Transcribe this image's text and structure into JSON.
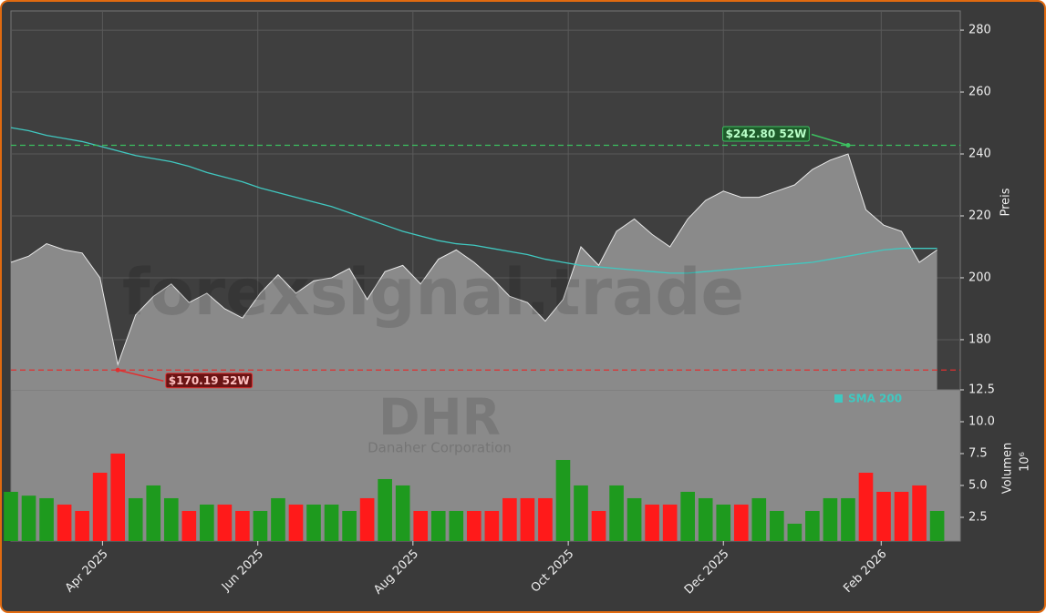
{
  "chart_data": [
    {
      "type": "area",
      "watermark": "forexsignal.trade",
      "ylabel": "Preis",
      "x": [
        0,
        1,
        2,
        3,
        4,
        5,
        6,
        7,
        8,
        9,
        10,
        11,
        12,
        13,
        14,
        15,
        16,
        17,
        18,
        19,
        20,
        21,
        22,
        23,
        24,
        25,
        26,
        27,
        28,
        29,
        30,
        31,
        32,
        33,
        34,
        35,
        36,
        37,
        38,
        39,
        40,
        41,
        42,
        43,
        44,
        45,
        46,
        47,
        48,
        49,
        50,
        51,
        52
      ],
      "xlim": [
        0,
        53.3
      ],
      "ylim": [
        163.8,
        286.2
      ],
      "yticks": [
        180,
        200,
        220,
        240,
        260,
        280
      ],
      "grid": true,
      "legend": "lower right",
      "series": [
        {
          "name": "DHR",
          "color": "#e8e8e8",
          "fill": "#8a8a8a",
          "values": [
            205,
            207,
            211,
            209,
            208,
            200,
            172,
            188,
            194,
            198,
            192,
            195,
            190,
            187,
            195,
            201,
            195,
            199,
            200,
            203,
            193,
            202,
            204,
            198,
            206,
            209,
            205,
            200,
            194,
            192,
            186,
            193,
            210,
            204,
            215,
            219,
            214,
            210,
            219,
            225,
            228,
            226,
            226,
            228,
            230,
            235,
            238,
            240,
            222,
            217,
            215,
            205,
            209
          ]
        },
        {
          "name": "SMA 200",
          "color": "#40c8c0",
          "values": [
            248.5,
            247.5,
            246,
            245,
            244,
            242.5,
            241,
            239.5,
            238.5,
            237.5,
            236,
            234,
            232.5,
            231,
            229,
            227.5,
            226,
            224.5,
            223,
            221,
            219,
            217,
            215,
            213.5,
            212,
            211,
            210.5,
            209.5,
            208.5,
            207.5,
            206,
            205,
            204,
            203.5,
            203,
            202.5,
            202,
            201.5,
            201.5,
            202,
            202.5,
            203,
            203.5,
            204,
            204.5,
            205,
            206,
            207,
            208,
            209,
            209.5,
            209.5,
            209.5
          ]
        }
      ],
      "hlines": [
        {
          "value": 242.8,
          "label": "$242.80 52W",
          "color": "#3cc060"
        },
        {
          "value": 170.19,
          "label": "$170.19 52W",
          "color": "#e03030"
        }
      ]
    },
    {
      "type": "bar",
      "title": "DHR",
      "subtitle": "Danaher Corporation",
      "ylabel": "Volumen",
      "scale_label": "10⁶",
      "x": [
        0,
        1,
        2,
        3,
        4,
        5,
        6,
        7,
        8,
        9,
        10,
        11,
        12,
        13,
        14,
        15,
        16,
        17,
        18,
        19,
        20,
        21,
        22,
        23,
        24,
        25,
        26,
        27,
        28,
        29,
        30,
        31,
        32,
        33,
        34,
        35,
        36,
        37,
        38,
        39,
        40,
        41,
        42,
        43,
        44,
        45,
        46,
        47,
        48,
        49,
        50,
        51,
        52
      ],
      "xlim": [
        0,
        53.3
      ],
      "xticks": [
        {
          "value": 5.14,
          "label": "Apr 2025"
        },
        {
          "value": 13.86,
          "label": "Jun 2025"
        },
        {
          "value": 22.57,
          "label": "Aug 2025"
        },
        {
          "value": 31.29,
          "label": "Oct 2025"
        },
        {
          "value": 40,
          "label": "Dec 2025"
        },
        {
          "value": 48.86,
          "label": "Feb 2026"
        }
      ],
      "ylim": [
        0.64,
        12.5
      ],
      "yticks": [
        2.5,
        {
          "value": 5,
          "label": "5.0"
        },
        7.5,
        {
          "value": 10,
          "label": "10.0"
        },
        12.5
      ],
      "up_color": "#1e9a1e",
      "down_color": "#ff1a1a",
      "values": [
        4.5,
        4.2,
        4,
        3.5,
        3,
        6,
        7.5,
        4,
        5,
        4,
        3,
        3.5,
        3.5,
        3,
        3,
        4,
        3.5,
        3.5,
        3.5,
        3,
        4,
        5.5,
        5,
        3,
        3,
        3,
        3,
        3,
        4,
        4,
        4,
        7,
        5,
        3,
        5,
        4,
        3.5,
        3.5,
        4.5,
        4,
        3.5,
        3.5,
        4,
        3,
        2,
        3,
        4,
        4,
        6,
        4.5,
        4.5,
        5,
        3
      ]
    }
  ]
}
